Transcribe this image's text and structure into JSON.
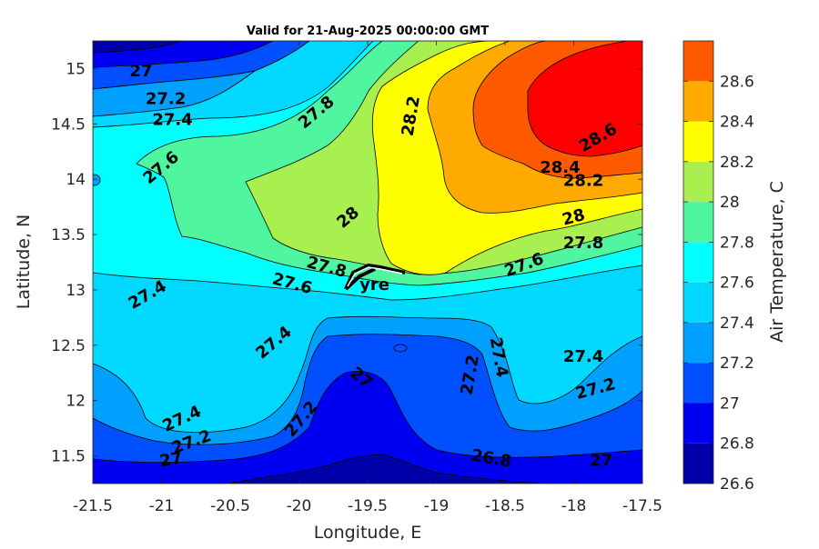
{
  "chart_data": {
    "type": "filled_contour",
    "title": "Valid for 21-Aug-2025 00:00:00 GMT",
    "xlabel": "Longitude, E",
    "ylabel": "Latitude, N",
    "colorbar_label": "Air Temperature, C",
    "xlim": [
      -21.5,
      -17.5
    ],
    "ylim": [
      11.25,
      15.25
    ],
    "x_ticks": [
      -21.5,
      -21,
      -20.5,
      -20,
      -19.5,
      -19,
      -18.5,
      -18,
      -17.5
    ],
    "x_tick_labels": [
      "-21.5",
      "-21",
      "-20.5",
      "-20",
      "-19.5",
      "-19",
      "-18.5",
      "-18",
      "-17.5"
    ],
    "y_ticks": [
      11.5,
      12,
      12.5,
      13,
      13.5,
      14,
      14.5,
      15
    ],
    "y_tick_labels": [
      "11.5",
      "12",
      "12.5",
      "13",
      "13.5",
      "14",
      "14.5",
      "15"
    ],
    "colorbar_levels": [
      26.6,
      26.8,
      27,
      27.2,
      27.4,
      27.6,
      27.8,
      28,
      28.2,
      28.4,
      28.6,
      28.8
    ],
    "colorbar_ticks": [
      26.6,
      26.8,
      27,
      27.2,
      27.4,
      27.6,
      27.8,
      28,
      28.2,
      28.4,
      28.6
    ],
    "colorbar_tick_labels": [
      "26.6",
      "26.8",
      "27",
      "27.2",
      "27.4",
      "27.6",
      "27.8",
      "28",
      "28.2",
      "28.4",
      "28.6"
    ],
    "colormap": [
      "#0000a8",
      "#0000f0",
      "#0050ff",
      "#00a0ff",
      "#00d8ff",
      "#00ffff",
      "#50f5a0",
      "#a8f050",
      "#ffff00",
      "#ffaa00",
      "#ff5a00",
      "#ff0000",
      "#a80000"
    ],
    "contour_labels": [
      {
        "text": "27",
        "lon": -21.15,
        "lat": 14.97,
        "rot": 0
      },
      {
        "text": "27.2",
        "lon": -20.97,
        "lat": 14.72,
        "rot": 0
      },
      {
        "text": "27.4",
        "lon": -20.92,
        "lat": 14.53,
        "rot": 0
      },
      {
        "text": "27.6",
        "lon": -21.0,
        "lat": 14.1,
        "rot": -40
      },
      {
        "text": "27.8",
        "lon": -19.87,
        "lat": 14.6,
        "rot": -40
      },
      {
        "text": "28.2",
        "lon": -19.18,
        "lat": 14.57,
        "rot": -80
      },
      {
        "text": "28",
        "lon": -19.64,
        "lat": 13.65,
        "rot": -40
      },
      {
        "text": "27.8",
        "lon": -19.8,
        "lat": 13.2,
        "rot": 15
      },
      {
        "text": "27.6",
        "lon": -20.05,
        "lat": 13.05,
        "rot": 15
      },
      {
        "text": "27.4",
        "lon": -21.1,
        "lat": 12.95,
        "rot": -30
      },
      {
        "text": "27.4",
        "lon": -20.18,
        "lat": 12.52,
        "rot": -40
      },
      {
        "text": "27",
        "lon": -19.55,
        "lat": 12.2,
        "rot": 40
      },
      {
        "text": "27.2",
        "lon": -18.75,
        "lat": 12.23,
        "rot": -80
      },
      {
        "text": "27.4",
        "lon": -18.55,
        "lat": 12.39,
        "rot": 80
      },
      {
        "text": "27.2",
        "lon": -19.98,
        "lat": 11.83,
        "rot": -50
      },
      {
        "text": "27.4",
        "lon": -20.85,
        "lat": 11.83,
        "rot": -25
      },
      {
        "text": "27.2",
        "lon": -20.78,
        "lat": 11.62,
        "rot": -20
      },
      {
        "text": "27",
        "lon": -20.93,
        "lat": 11.46,
        "rot": -10
      },
      {
        "text": "26.8",
        "lon": -18.6,
        "lat": 11.47,
        "rot": 10
      },
      {
        "text": "27",
        "lon": -17.8,
        "lat": 11.45,
        "rot": 0
      },
      {
        "text": "27.4",
        "lon": -17.93,
        "lat": 12.39,
        "rot": 0
      },
      {
        "text": "27.2",
        "lon": -17.84,
        "lat": 12.1,
        "rot": -15
      },
      {
        "text": "27.6",
        "lon": -18.36,
        "lat": 13.22,
        "rot": -20
      },
      {
        "text": "27.8",
        "lon": -17.93,
        "lat": 13.42,
        "rot": 0
      },
      {
        "text": "28",
        "lon": -18.0,
        "lat": 13.65,
        "rot": -15
      },
      {
        "text": "28.2",
        "lon": -17.93,
        "lat": 13.98,
        "rot": 0
      },
      {
        "text": "28.4",
        "lon": -18.1,
        "lat": 14.1,
        "rot": 0
      },
      {
        "text": "28.6",
        "lon": -17.82,
        "lat": 14.37,
        "rot": -30
      }
    ],
    "place_label": {
      "text": "yre",
      "lon": -19.45,
      "lat": 13.04
    }
  }
}
